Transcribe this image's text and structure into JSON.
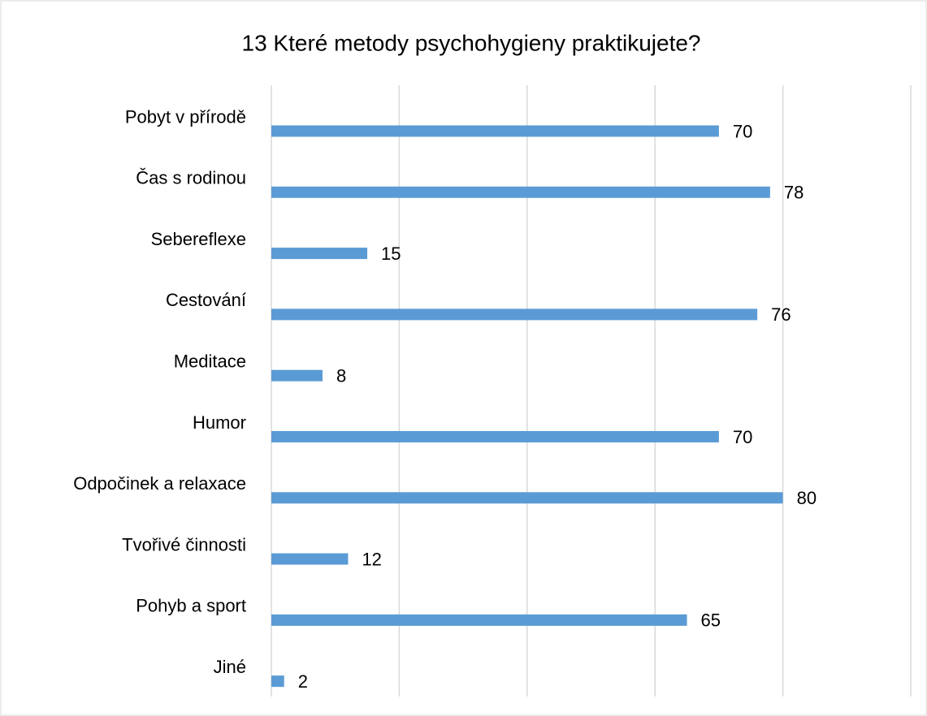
{
  "chart_data": {
    "type": "bar",
    "orientation": "horizontal",
    "title": "13 Které metody psychohygieny praktikujete?",
    "categories": [
      "Pobyt v přírodě",
      "Čas s rodinou",
      "Sebereflexe",
      "Cestování",
      "Meditace",
      "Humor",
      "Odpočinek a relaxace",
      "Tvořivé činnosti",
      "Pohyb a sport",
      "Jiné"
    ],
    "values": [
      70,
      78,
      15,
      76,
      8,
      70,
      80,
      12,
      65,
      2
    ],
    "color": "#5b9bd5",
    "xlim": [
      0,
      100
    ],
    "xticks": [
      0,
      20,
      40,
      60,
      80,
      100
    ],
    "grid": true
  }
}
